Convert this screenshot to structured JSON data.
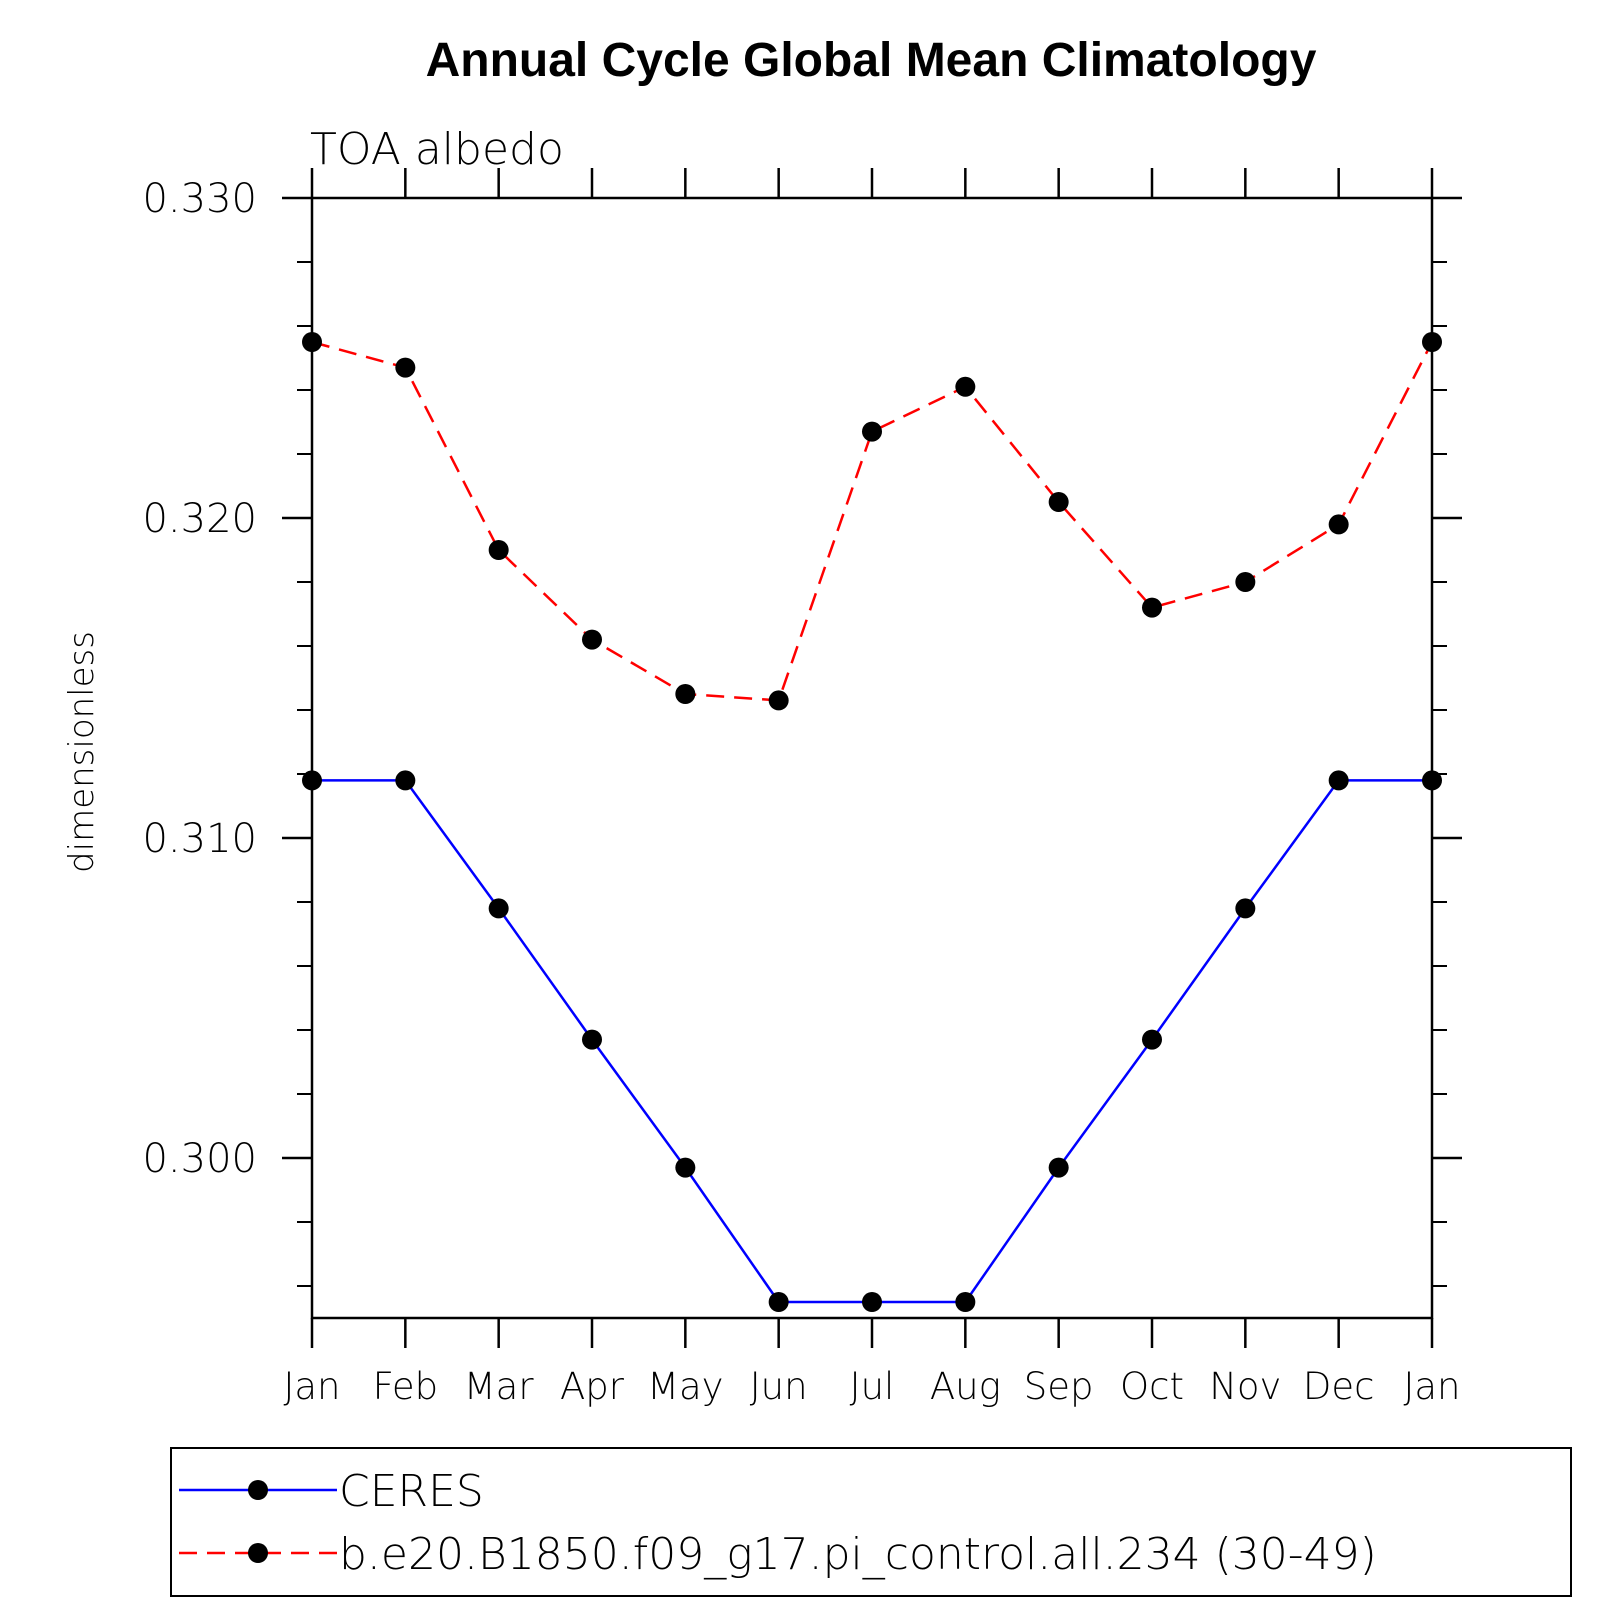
{
  "chart_data": {
    "type": "line",
    "title": "Annual Cycle Global Mean Climatology",
    "subtitle": "TOA albedo",
    "ylabel": "dimensionless",
    "xlabel": "",
    "categories": [
      "Jan",
      "Feb",
      "Mar",
      "Apr",
      "May",
      "Jun",
      "Jul",
      "Aug",
      "Sep",
      "Oct",
      "Nov",
      "Dec",
      "Jan"
    ],
    "ylim": [
      0.295,
      0.33
    ],
    "yticks": [
      0.3,
      0.31,
      0.32,
      0.33
    ],
    "ytick_labels": [
      "0.300",
      "0.310",
      "0.320",
      "0.330"
    ],
    "y_minor_step": 0.002,
    "legend_position": "bottom",
    "series": [
      {
        "name": "CERES",
        "color": "#0000ff",
        "dash": "solid",
        "marker": "filled-circle",
        "values": [
          0.3118,
          0.3118,
          0.3078,
          0.3037,
          0.2997,
          0.2955,
          0.2955,
          0.2955,
          0.2997,
          0.3037,
          0.3078,
          0.3118,
          0.3118
        ]
      },
      {
        "name": "b.e20.B1850.f09_g17.pi_control.all.234 (30-49)",
        "color": "#ff0000",
        "dash": "dashed",
        "marker": "filled-circle",
        "values": [
          0.3255,
          0.3247,
          0.319,
          0.3162,
          0.3145,
          0.3143,
          0.3227,
          0.3241,
          0.3205,
          0.3172,
          0.318,
          0.3198,
          0.3255
        ]
      }
    ]
  }
}
